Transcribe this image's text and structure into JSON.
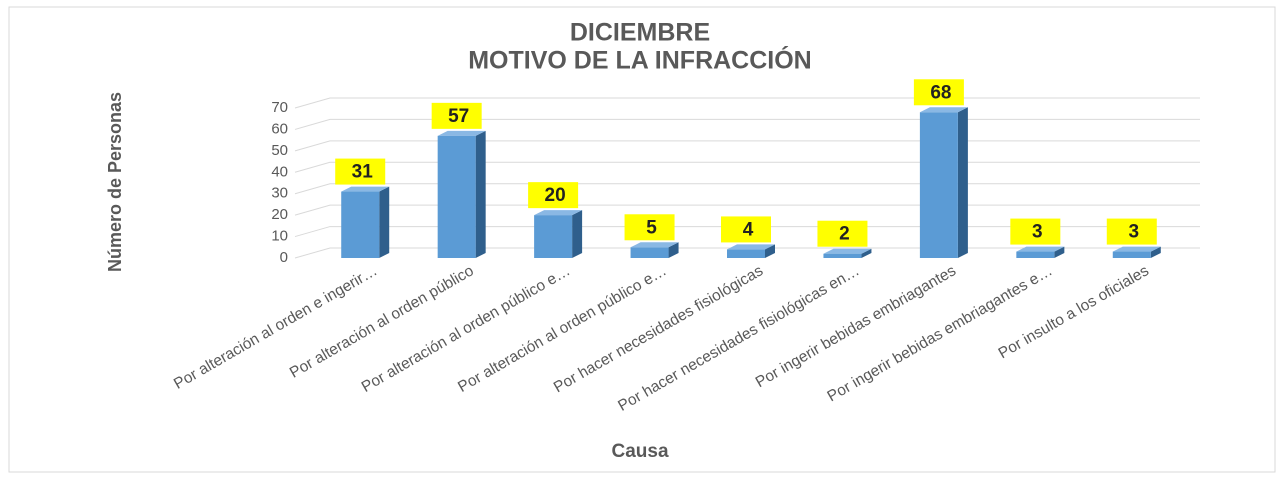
{
  "chart_data": {
    "type": "bar3d",
    "title": [
      "DICIEMBRE",
      "MOTIVO DE LA INFRACCIÓN"
    ],
    "x_label": "Causa",
    "y_label": "Número de Personas",
    "categories": [
      "Por alteración al orden e ingerir…",
      "Por alteración al orden público",
      "Por alteración al orden público e…",
      "Por alteración al orden público e…",
      "Por hacer necesidades fisiológicas",
      "Por hacer necesidades fisiológicas en…",
      "Por ingerir bebidas embriagantes",
      "Por ingerir bebidas embriagantes e…",
      "Por insulto a los oficiales"
    ],
    "values": [
      31,
      57,
      20,
      5,
      4,
      2,
      68,
      3,
      3
    ],
    "color": "#5b9bd5",
    "label_background": "#ffff00",
    "ylim": [
      0,
      70
    ],
    "yticks": [
      0,
      10,
      20,
      30,
      40,
      50,
      60,
      70
    ],
    "grid": true
  }
}
